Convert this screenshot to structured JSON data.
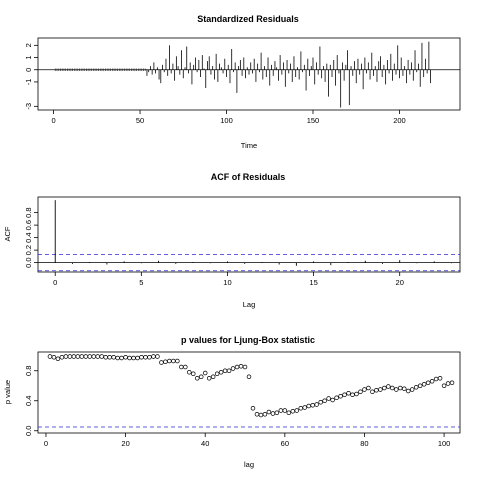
{
  "chart_data": [
    {
      "type": "bar",
      "title": "Standardized Residuals",
      "xlabel": "Time",
      "ylabel": "",
      "xlim": [
        -9,
        235
      ],
      "ylim": [
        -3.3,
        2.6
      ],
      "xticks": [
        0,
        50,
        100,
        150,
        200
      ],
      "yticks": [
        -3,
        -1,
        0,
        1,
        2
      ],
      "xtick_labels": [
        "0",
        "50",
        "100",
        "150",
        "200"
      ],
      "ytick_labels": [
        "-3",
        "-1",
        "0",
        "1",
        "2"
      ],
      "x_start": 1,
      "values": [
        0,
        0,
        0,
        0,
        0,
        0,
        0,
        0,
        0,
        0,
        0,
        0,
        0,
        0,
        0,
        0,
        0,
        0,
        0,
        0,
        0,
        0,
        0,
        0,
        0,
        0,
        0,
        0,
        0,
        0,
        0,
        0,
        0,
        0,
        0,
        0,
        0,
        0,
        0,
        0,
        0,
        0,
        0,
        0,
        0,
        0,
        0,
        0,
        0,
        0,
        0,
        0,
        0,
        -0.5,
        -0.2,
        0.3,
        -0.4,
        0.6,
        -0.3,
        0.2,
        -0.8,
        -1.1,
        0.4,
        -0.2,
        0.9,
        -0.5,
        2.0,
        -0.3,
        0.5,
        -0.9,
        1.1,
        0.3,
        -0.4,
        1.6,
        -0.7,
        0.2,
        1.9,
        -0.3,
        0.6,
        -1.2,
        0.4,
        1.0,
        -0.2,
        0.8,
        -0.6,
        1.2,
        0.1,
        -1.5,
        0.7,
        1.1,
        -0.4,
        0.3,
        -0.8,
        1.3,
        -1.0,
        0.5,
        0.2,
        -0.3,
        0.9,
        -0.6,
        0.4,
        -1.1,
        1.7,
        -0.2,
        0.6,
        -1.9,
        0.3,
        0.8,
        -0.5,
        1.0,
        -0.7,
        0.2,
        -0.4,
        0.6,
        -0.3,
        0.9,
        -1.0,
        0.5,
        -0.2,
        1.4,
        -0.8,
        0.3,
        -0.6,
        1.0,
        -1.3,
        0.4,
        -0.5,
        0.7,
        0.2,
        -0.9,
        1.2,
        -0.4,
        0.6,
        -1.4,
        0.8,
        -0.3,
        0.5,
        -1.0,
        1.1,
        -0.6,
        0.2,
        -0.8,
        1.5,
        -0.2,
        0.4,
        -1.7,
        0.9,
        -0.5,
        0.3,
        1.0,
        -1.2,
        0.6,
        -0.4,
        1.9,
        -0.7,
        0.3,
        -1.0,
        0.5,
        -2.2,
        0.4,
        -0.6,
        0.8,
        -1.3,
        1.2,
        -0.3,
        -3.1,
        0.6,
        -0.9,
        0.4,
        1.6,
        -2.9,
        0.3,
        -0.5,
        0.7,
        -1.1,
        0.9,
        -0.4,
        0.5,
        -1.6,
        1.0,
        -0.3,
        0.6,
        -0.8,
        1.4,
        -0.5,
        0.3,
        -1.0,
        0.7,
        1.1,
        -0.6,
        0.4,
        -1.2,
        0.8,
        -0.3,
        1.3,
        -0.9,
        0.5,
        -0.4,
        2.0,
        -0.7,
        1.0,
        -0.5,
        0.3,
        -1.1,
        0.8,
        -0.4,
        0.6,
        -0.9,
        1.6,
        -0.2,
        0.5,
        -1.4,
        2.2,
        -0.6,
        0.9,
        -0.3,
        2.3,
        -1.1
      ]
    },
    {
      "type": "bar",
      "title": "ACF of Residuals",
      "xlabel": "Lag",
      "ylabel": "ACF",
      "xlim": [
        -1,
        23.5
      ],
      "ylim": [
        -0.15,
        1.05
      ],
      "xticks": [
        0,
        5,
        10,
        15,
        20
      ],
      "yticks": [
        0.0,
        0.2,
        0.4,
        0.6,
        0.8
      ],
      "xtick_labels": [
        "0",
        "5",
        "10",
        "15",
        "20"
      ],
      "ytick_labels": [
        "0.0",
        "0.2",
        "0.4",
        "0.6",
        "0.8"
      ],
      "lags": [
        0,
        1,
        2,
        3,
        4,
        5,
        6,
        7,
        8,
        9,
        10,
        11,
        12,
        13,
        14,
        15,
        16,
        17,
        18,
        19,
        20,
        21,
        22,
        23
      ],
      "values": [
        1.0,
        -0.02,
        0.01,
        -0.03,
        0.02,
        -0.01,
        0.03,
        -0.02,
        0.01,
        -0.01,
        0.02,
        -0.02,
        0.01,
        -0.03,
        -0.05,
        0.02,
        -0.04,
        0.01,
        0.03,
        -0.02,
        0.04,
        -0.01,
        0.02,
        -0.01
      ],
      "conf_bounds": [
        0.13,
        -0.13
      ]
    },
    {
      "type": "scatter",
      "title": "p values for Ljung-Box statistic",
      "xlabel": "lag",
      "ylabel": "p value",
      "xlim": [
        -2,
        104
      ],
      "ylim": [
        -0.03,
        1.05
      ],
      "xticks": [
        0,
        20,
        40,
        60,
        80,
        100
      ],
      "yticks": [
        0.0,
        0.4,
        0.8
      ],
      "xtick_labels": [
        "0",
        "20",
        "40",
        "60",
        "80",
        "100"
      ],
      "ytick_labels": [
        "0.0",
        "0.4",
        "0.8"
      ],
      "x_start": 1,
      "values": [
        0.99,
        0.98,
        0.96,
        0.98,
        0.99,
        0.99,
        0.99,
        0.99,
        0.99,
        0.99,
        0.99,
        0.99,
        0.99,
        0.99,
        0.98,
        0.98,
        0.98,
        0.97,
        0.97,
        0.98,
        0.97,
        0.97,
        0.97,
        0.98,
        0.98,
        0.98,
        0.99,
        0.99,
        0.91,
        0.92,
        0.93,
        0.93,
        0.93,
        0.85,
        0.85,
        0.78,
        0.76,
        0.7,
        0.72,
        0.77,
        0.7,
        0.72,
        0.76,
        0.78,
        0.8,
        0.8,
        0.83,
        0.85,
        0.86,
        0.85,
        0.72,
        0.3,
        0.22,
        0.21,
        0.22,
        0.25,
        0.23,
        0.24,
        0.27,
        0.27,
        0.24,
        0.26,
        0.27,
        0.3,
        0.31,
        0.33,
        0.34,
        0.35,
        0.38,
        0.4,
        0.43,
        0.41,
        0.44,
        0.46,
        0.48,
        0.5,
        0.48,
        0.49,
        0.52,
        0.55,
        0.57,
        0.52,
        0.54,
        0.55,
        0.57,
        0.59,
        0.57,
        0.55,
        0.57,
        0.56,
        0.53,
        0.55,
        0.58,
        0.6,
        0.62,
        0.64,
        0.66,
        0.69,
        0.7,
        0.6,
        0.63,
        0.64
      ],
      "ref_line": 0.05
    }
  ]
}
